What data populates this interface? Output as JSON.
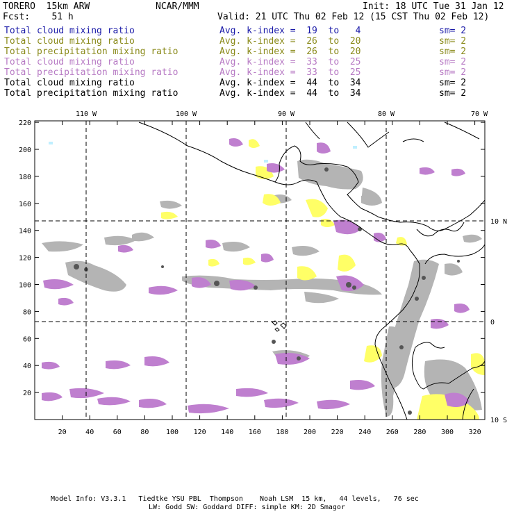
{
  "header": {
    "model": "TORERO  15km ARW",
    "center": "NCAR/MMM",
    "init": "Init: 18 UTC Tue 31 Jan 12",
    "fcst": "Fcst:    51 h",
    "valid": "Valid: 21 UTC Thu 02 Feb 12 (15 CST Thu 02 Feb 12)"
  },
  "legend": [
    {
      "field": "Total cloud mixing ratio",
      "kindex": "Avg. k-index =  19  to   4",
      "sm": "sm= 2",
      "color": "#1a1aa8"
    },
    {
      "field": "Total cloud mixing ratio",
      "kindex": "Avg. k-index =  26  to  20",
      "sm": "sm= 2",
      "color": "#8a8a1a"
    },
    {
      "field": "Total precipitation mixing ratio",
      "kindex": "Avg. k-index =  26  to  20",
      "sm": "sm= 2",
      "color": "#8a8a1a"
    },
    {
      "field": "Total cloud mixing ratio",
      "kindex": "Avg. k-index =  33  to  25",
      "sm": "sm= 2",
      "color": "#b77ac4"
    },
    {
      "field": "Total precipitation mixing ratio",
      "kindex": "Avg. k-index =  33  to  25",
      "sm": "sm= 2",
      "color": "#b77ac4"
    },
    {
      "field": "Total cloud mixing ratio",
      "kindex": "Avg. k-index =  44  to  34",
      "sm": "sm= 2",
      "color": "#000000"
    },
    {
      "field": "Total precipitation mixing ratio",
      "kindex": "Avg. k-index =  44  to  34",
      "sm": "sm= 2",
      "color": "#000000"
    }
  ],
  "map": {
    "x_ticks": [
      "20",
      "40",
      "60",
      "80",
      "100",
      "120",
      "140",
      "160",
      "180",
      "200",
      "220",
      "240",
      "260",
      "280",
      "300",
      "320"
    ],
    "y_ticks": [
      "20",
      "40",
      "60",
      "80",
      "100",
      "120",
      "140",
      "160",
      "180",
      "200",
      "220"
    ],
    "lon_labels": [
      "110 W",
      "100 W",
      "90 W",
      "80 W",
      "70 W"
    ],
    "lat_labels": [
      "10 N",
      "0",
      "10 S"
    ],
    "colors": {
      "grey": "#b4b4b4",
      "dark": "#555555",
      "purple": "#bf7fcf",
      "yellow": "#ffff66",
      "cyan": "#bfefff"
    }
  },
  "footer": {
    "line1": "Model Info: V3.3.1   Tiedtke YSU PBL  Thompson    Noah LSM  15 km,   44 levels,   76 sec",
    "line2": "LW: Godd SW: Goddard DIFF: simple KM: 2D Smagor"
  }
}
